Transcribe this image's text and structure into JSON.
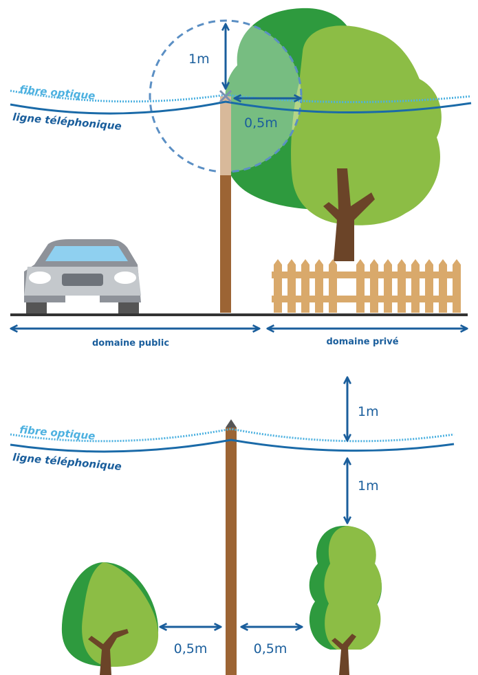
{
  "top": {
    "fiber_label": "fibre optique",
    "phone_label": "ligne téléphonique",
    "vertical_distance": "1m",
    "horizontal_distance": "0,5m",
    "public_domain": "domaine public",
    "private_domain": "domaine privé"
  },
  "bottom": {
    "fiber_label": "fibre optique",
    "phone_label": "ligne téléphonique",
    "distance_above": "1m",
    "distance_below": "1m",
    "distance_left": "0,5m",
    "distance_right": "0,5m"
  }
}
